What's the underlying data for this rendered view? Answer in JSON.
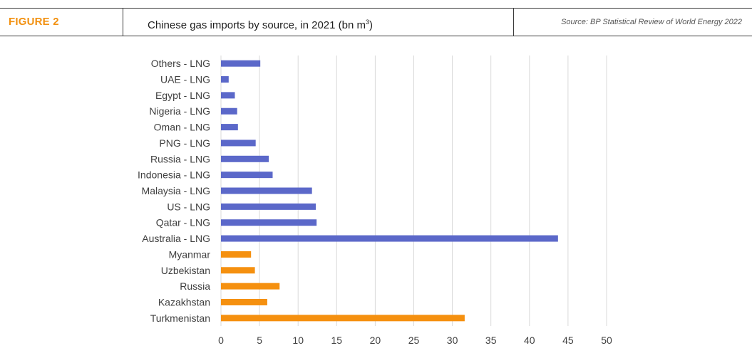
{
  "header": {
    "figure_label": "FIGURE 2",
    "title": "Chinese gas imports by source, in 2021 (bn m",
    "title_sup": "3",
    "title_end": ")",
    "source": "Source: BP Statistical Review of World Energy 2022"
  },
  "colors": {
    "lng": "#5b68c9",
    "pipeline": "#f5900f",
    "grid": "#d9d9d9"
  },
  "chart_data": {
    "type": "bar",
    "orientation": "horizontal",
    "title": "Chinese gas imports by source, in 2021 (bn m3)",
    "xlabel": "",
    "ylabel": "",
    "xlim": [
      0,
      50
    ],
    "xticks": [
      0,
      5,
      10,
      15,
      20,
      25,
      30,
      35,
      40,
      45,
      50
    ],
    "grid": true,
    "categories": [
      "Others - LNG",
      "UAE - LNG",
      "Egypt - LNG",
      "Nigeria - LNG",
      "Oman - LNG",
      "PNG - LNG",
      "Russia - LNG",
      "Indonesia - LNG",
      "Malaysia - LNG",
      "US - LNG",
      "Qatar - LNG",
      "Australia - LNG",
      "Myanmar",
      "Uzbekistan",
      "Russia",
      "Kazakhstan",
      "Turkmenistan"
    ],
    "values": [
      5.1,
      1.0,
      1.8,
      2.1,
      2.2,
      4.5,
      6.2,
      6.7,
      11.8,
      12.3,
      12.4,
      43.7,
      3.9,
      4.4,
      7.6,
      6.0,
      31.6
    ],
    "groups": [
      "lng",
      "lng",
      "lng",
      "lng",
      "lng",
      "lng",
      "lng",
      "lng",
      "lng",
      "lng",
      "lng",
      "lng",
      "pipeline",
      "pipeline",
      "pipeline",
      "pipeline",
      "pipeline"
    ]
  }
}
